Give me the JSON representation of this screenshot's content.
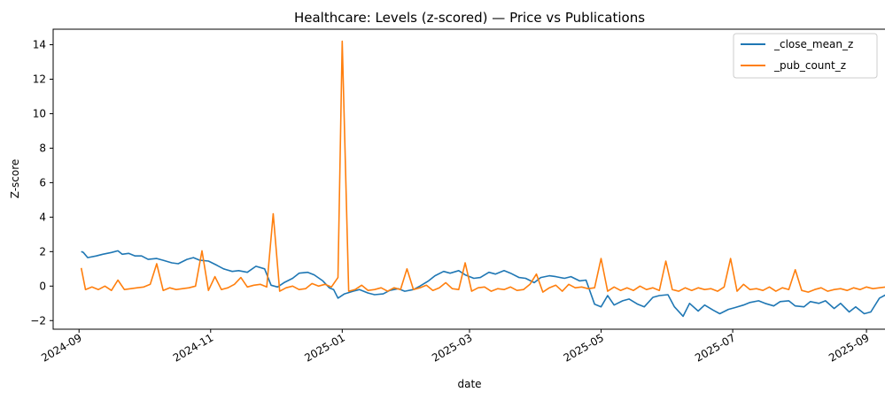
{
  "chart_data": {
    "type": "line",
    "title": "Healthcare: Levels (z-scored) — Price vs Publications",
    "xlabel": "date",
    "ylabel": "Z-score",
    "xlim": [
      "2024-08-20",
      "2025-09-10"
    ],
    "ylim": [
      -2.5,
      14.9
    ],
    "x_ticks": [
      "2024-09-01",
      "2024-11-01",
      "2025-01-01",
      "2025-03-01",
      "2025-05-01",
      "2025-07-01",
      "2025-09-01"
    ],
    "x_tick_labels": [
      "2024-09",
      "2024-11",
      "2025-01",
      "2025-03",
      "2025-05",
      "2025-07",
      "2025-09"
    ],
    "y_ticks": [
      -2,
      0,
      2,
      4,
      6,
      8,
      10,
      12,
      14
    ],
    "grid": false,
    "legend_position": "top-right",
    "series": [
      {
        "name": "_close_mean_z",
        "color": "#1f77b4",
        "points": [
          [
            "2024-09-02",
            2.0
          ],
          [
            "2024-09-03",
            1.95
          ],
          [
            "2024-09-05",
            1.65
          ],
          [
            "2024-09-09",
            1.75
          ],
          [
            "2024-09-12",
            1.85
          ],
          [
            "2024-09-16",
            1.95
          ],
          [
            "2024-09-19",
            2.05
          ],
          [
            "2024-09-21",
            1.85
          ],
          [
            "2024-09-24",
            1.9
          ],
          [
            "2024-09-27",
            1.75
          ],
          [
            "2024-09-30",
            1.75
          ],
          [
            "2024-10-03",
            1.55
          ],
          [
            "2024-10-07",
            1.6
          ],
          [
            "2024-10-10",
            1.5
          ],
          [
            "2024-10-14",
            1.35
          ],
          [
            "2024-10-17",
            1.3
          ],
          [
            "2024-10-21",
            1.55
          ],
          [
            "2024-10-24",
            1.65
          ],
          [
            "2024-10-27",
            1.5
          ],
          [
            "2024-10-31",
            1.45
          ],
          [
            "2024-11-04",
            1.2
          ],
          [
            "2024-11-07",
            1.0
          ],
          [
            "2024-11-11",
            0.85
          ],
          [
            "2024-11-14",
            0.9
          ],
          [
            "2024-11-18",
            0.8
          ],
          [
            "2024-11-22",
            1.15
          ],
          [
            "2024-11-26",
            1.0
          ],
          [
            "2024-11-29",
            0.05
          ],
          [
            "2024-12-02",
            -0.05
          ],
          [
            "2024-12-05",
            0.2
          ],
          [
            "2024-12-09",
            0.45
          ],
          [
            "2024-12-12",
            0.75
          ],
          [
            "2024-12-16",
            0.8
          ],
          [
            "2024-12-19",
            0.65
          ],
          [
            "2024-12-23",
            0.3
          ],
          [
            "2024-12-26",
            -0.1
          ],
          [
            "2024-12-28",
            -0.2
          ],
          [
            "2024-12-30",
            -0.7
          ],
          [
            "2025-01-02",
            -0.45
          ],
          [
            "2025-01-06",
            -0.3
          ],
          [
            "2025-01-09",
            -0.2
          ],
          [
            "2025-01-13",
            -0.4
          ],
          [
            "2025-01-16",
            -0.5
          ],
          [
            "2025-01-20",
            -0.45
          ],
          [
            "2025-01-23",
            -0.25
          ],
          [
            "2025-01-27",
            -0.15
          ],
          [
            "2025-01-30",
            -0.3
          ],
          [
            "2025-02-03",
            -0.2
          ],
          [
            "2025-02-06",
            0.0
          ],
          [
            "2025-02-10",
            0.3
          ],
          [
            "2025-02-13",
            0.6
          ],
          [
            "2025-02-17",
            0.85
          ],
          [
            "2025-02-20",
            0.75
          ],
          [
            "2025-02-24",
            0.9
          ],
          [
            "2025-02-27",
            0.65
          ],
          [
            "2025-03-03",
            0.45
          ],
          [
            "2025-03-06",
            0.5
          ],
          [
            "2025-03-10",
            0.8
          ],
          [
            "2025-03-13",
            0.7
          ],
          [
            "2025-03-17",
            0.9
          ],
          [
            "2025-03-20",
            0.75
          ],
          [
            "2025-03-24",
            0.5
          ],
          [
            "2025-03-27",
            0.45
          ],
          [
            "2025-03-31",
            0.2
          ],
          [
            "2025-04-03",
            0.5
          ],
          [
            "2025-04-07",
            0.6
          ],
          [
            "2025-04-10",
            0.55
          ],
          [
            "2025-04-14",
            0.45
          ],
          [
            "2025-04-17",
            0.55
          ],
          [
            "2025-04-21",
            0.3
          ],
          [
            "2025-04-24",
            0.35
          ],
          [
            "2025-04-28",
            -1.05
          ],
          [
            "2025-05-01",
            -1.2
          ],
          [
            "2025-05-04",
            -0.55
          ],
          [
            "2025-05-07",
            -1.1
          ],
          [
            "2025-05-11",
            -0.85
          ],
          [
            "2025-05-14",
            -0.75
          ],
          [
            "2025-05-18",
            -1.05
          ],
          [
            "2025-05-21",
            -1.2
          ],
          [
            "2025-05-25",
            -0.65
          ],
          [
            "2025-05-28",
            -0.55
          ],
          [
            "2025-06-01",
            -0.5
          ],
          [
            "2025-06-04",
            -1.2
          ],
          [
            "2025-06-08",
            -1.75
          ],
          [
            "2025-06-11",
            -1.0
          ],
          [
            "2025-06-15",
            -1.45
          ],
          [
            "2025-06-18",
            -1.1
          ],
          [
            "2025-06-22",
            -1.4
          ],
          [
            "2025-06-25",
            -1.6
          ],
          [
            "2025-06-29",
            -1.35
          ],
          [
            "2025-07-02",
            -1.25
          ],
          [
            "2025-07-06",
            -1.1
          ],
          [
            "2025-07-09",
            -0.95
          ],
          [
            "2025-07-13",
            -0.85
          ],
          [
            "2025-07-16",
            -1.0
          ],
          [
            "2025-07-20",
            -1.15
          ],
          [
            "2025-07-23",
            -0.9
          ],
          [
            "2025-07-27",
            -0.85
          ],
          [
            "2025-07-30",
            -1.15
          ],
          [
            "2025-08-03",
            -1.2
          ],
          [
            "2025-08-06",
            -0.9
          ],
          [
            "2025-08-10",
            -1.0
          ],
          [
            "2025-08-13",
            -0.85
          ],
          [
            "2025-08-17",
            -1.3
          ],
          [
            "2025-08-20",
            -1.0
          ],
          [
            "2025-08-24",
            -1.5
          ],
          [
            "2025-08-27",
            -1.2
          ],
          [
            "2025-08-31",
            -1.6
          ],
          [
            "2025-09-03",
            -1.5
          ],
          [
            "2025-09-07",
            -0.7
          ],
          [
            "2025-09-10",
            -0.5
          ]
        ]
      },
      {
        "name": "_pub_count_z",
        "color": "#ff7f0e",
        "points": [
          [
            "2024-09-02",
            1.05
          ],
          [
            "2024-09-04",
            -0.2
          ],
          [
            "2024-09-07",
            -0.05
          ],
          [
            "2024-09-10",
            -0.2
          ],
          [
            "2024-09-13",
            0.0
          ],
          [
            "2024-09-16",
            -0.25
          ],
          [
            "2024-09-19",
            0.35
          ],
          [
            "2024-09-22",
            -0.2
          ],
          [
            "2024-09-25",
            -0.15
          ],
          [
            "2024-09-28",
            -0.1
          ],
          [
            "2024-10-01",
            -0.05
          ],
          [
            "2024-10-04",
            0.1
          ],
          [
            "2024-10-07",
            1.3
          ],
          [
            "2024-10-10",
            -0.25
          ],
          [
            "2024-10-13",
            -0.1
          ],
          [
            "2024-10-16",
            -0.2
          ],
          [
            "2024-10-19",
            -0.15
          ],
          [
            "2024-10-22",
            -0.1
          ],
          [
            "2024-10-25",
            0.0
          ],
          [
            "2024-10-28",
            2.05
          ],
          [
            "2024-10-31",
            -0.25
          ],
          [
            "2024-11-03",
            0.55
          ],
          [
            "2024-11-06",
            -0.2
          ],
          [
            "2024-11-09",
            -0.1
          ],
          [
            "2024-11-12",
            0.1
          ],
          [
            "2024-11-15",
            0.5
          ],
          [
            "2024-11-18",
            -0.05
          ],
          [
            "2024-11-21",
            0.05
          ],
          [
            "2024-11-24",
            0.1
          ],
          [
            "2024-11-27",
            -0.05
          ],
          [
            "2024-11-30",
            4.2
          ],
          [
            "2024-12-03",
            -0.3
          ],
          [
            "2024-12-06",
            -0.1
          ],
          [
            "2024-12-09",
            0.0
          ],
          [
            "2024-12-12",
            -0.2
          ],
          [
            "2024-12-15",
            -0.15
          ],
          [
            "2024-12-18",
            0.15
          ],
          [
            "2024-12-21",
            0.0
          ],
          [
            "2024-12-24",
            0.1
          ],
          [
            "2024-12-27",
            -0.05
          ],
          [
            "2024-12-30",
            0.5
          ],
          [
            "2025-01-01",
            14.2
          ],
          [
            "2025-01-04",
            -0.3
          ],
          [
            "2025-01-07",
            -0.2
          ],
          [
            "2025-01-10",
            0.05
          ],
          [
            "2025-01-13",
            -0.25
          ],
          [
            "2025-01-16",
            -0.2
          ],
          [
            "2025-01-19",
            -0.1
          ],
          [
            "2025-01-22",
            -0.3
          ],
          [
            "2025-01-25",
            -0.1
          ],
          [
            "2025-01-28",
            -0.2
          ],
          [
            "2025-01-31",
            1.0
          ],
          [
            "2025-02-03",
            -0.2
          ],
          [
            "2025-02-06",
            -0.1
          ],
          [
            "2025-02-09",
            0.05
          ],
          [
            "2025-02-12",
            -0.25
          ],
          [
            "2025-02-15",
            -0.1
          ],
          [
            "2025-02-18",
            0.2
          ],
          [
            "2025-02-21",
            -0.15
          ],
          [
            "2025-02-24",
            -0.2
          ],
          [
            "2025-02-27",
            1.35
          ],
          [
            "2025-03-02",
            -0.3
          ],
          [
            "2025-03-05",
            -0.1
          ],
          [
            "2025-03-08",
            -0.05
          ],
          [
            "2025-03-11",
            -0.3
          ],
          [
            "2025-03-14",
            -0.15
          ],
          [
            "2025-03-17",
            -0.2
          ],
          [
            "2025-03-20",
            -0.05
          ],
          [
            "2025-03-23",
            -0.25
          ],
          [
            "2025-03-26",
            -0.2
          ],
          [
            "2025-03-29",
            0.1
          ],
          [
            "2025-04-01",
            0.7
          ],
          [
            "2025-04-04",
            -0.35
          ],
          [
            "2025-04-07",
            -0.1
          ],
          [
            "2025-04-10",
            0.05
          ],
          [
            "2025-04-13",
            -0.3
          ],
          [
            "2025-04-16",
            0.1
          ],
          [
            "2025-04-19",
            -0.1
          ],
          [
            "2025-04-22",
            -0.05
          ],
          [
            "2025-04-25",
            -0.15
          ],
          [
            "2025-04-28",
            -0.1
          ],
          [
            "2025-05-01",
            1.6
          ],
          [
            "2025-05-04",
            -0.3
          ],
          [
            "2025-05-07",
            -0.05
          ],
          [
            "2025-05-10",
            -0.25
          ],
          [
            "2025-05-13",
            -0.1
          ],
          [
            "2025-05-16",
            -0.25
          ],
          [
            "2025-05-19",
            0.0
          ],
          [
            "2025-05-22",
            -0.2
          ],
          [
            "2025-05-25",
            -0.1
          ],
          [
            "2025-05-28",
            -0.25
          ],
          [
            "2025-05-31",
            1.45
          ],
          [
            "2025-06-03",
            -0.2
          ],
          [
            "2025-06-06",
            -0.3
          ],
          [
            "2025-06-09",
            -0.1
          ],
          [
            "2025-06-12",
            -0.25
          ],
          [
            "2025-06-15",
            -0.1
          ],
          [
            "2025-06-18",
            -0.2
          ],
          [
            "2025-06-21",
            -0.15
          ],
          [
            "2025-06-24",
            -0.3
          ],
          [
            "2025-06-27",
            -0.05
          ],
          [
            "2025-06-30",
            1.6
          ],
          [
            "2025-07-03",
            -0.3
          ],
          [
            "2025-07-06",
            0.1
          ],
          [
            "2025-07-09",
            -0.2
          ],
          [
            "2025-07-12",
            -0.15
          ],
          [
            "2025-07-15",
            -0.25
          ],
          [
            "2025-07-18",
            -0.05
          ],
          [
            "2025-07-21",
            -0.3
          ],
          [
            "2025-07-24",
            -0.1
          ],
          [
            "2025-07-27",
            -0.2
          ],
          [
            "2025-07-30",
            0.95
          ],
          [
            "2025-08-02",
            -0.25
          ],
          [
            "2025-08-05",
            -0.35
          ],
          [
            "2025-08-08",
            -0.2
          ],
          [
            "2025-08-11",
            -0.1
          ],
          [
            "2025-08-14",
            -0.3
          ],
          [
            "2025-08-17",
            -0.2
          ],
          [
            "2025-08-20",
            -0.15
          ],
          [
            "2025-08-23",
            -0.25
          ],
          [
            "2025-08-26",
            -0.1
          ],
          [
            "2025-08-29",
            -0.2
          ],
          [
            "2025-09-01",
            -0.05
          ],
          [
            "2025-09-04",
            -0.15
          ],
          [
            "2025-09-07",
            -0.1
          ],
          [
            "2025-09-10",
            -0.05
          ]
        ]
      }
    ]
  }
}
